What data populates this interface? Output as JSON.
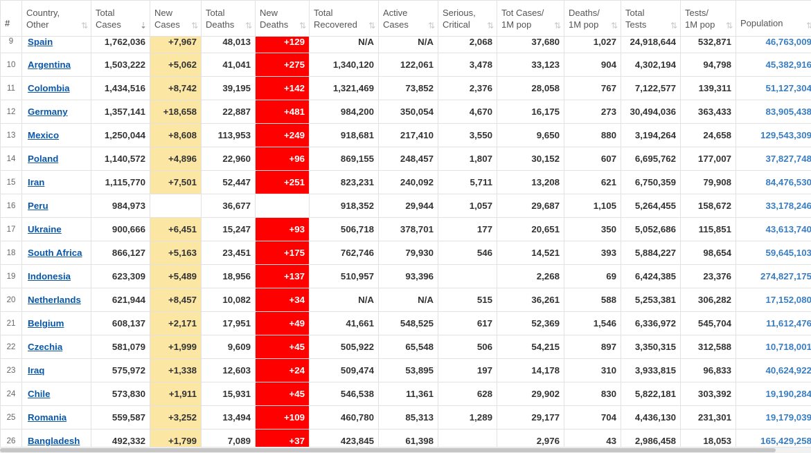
{
  "columns": [
    {
      "key": "num",
      "label1": "#",
      "label2": ""
    },
    {
      "key": "country",
      "label1": "Country,",
      "label2": "Other"
    },
    {
      "key": "total_cases",
      "label1": "Total",
      "label2": "Cases"
    },
    {
      "key": "new_cases",
      "label1": "New",
      "label2": "Cases"
    },
    {
      "key": "total_deaths",
      "label1": "Total",
      "label2": "Deaths"
    },
    {
      "key": "new_deaths",
      "label1": "New",
      "label2": "Deaths"
    },
    {
      "key": "total_recovered",
      "label1": "Total",
      "label2": "Recovered"
    },
    {
      "key": "active_cases",
      "label1": "Active",
      "label2": "Cases"
    },
    {
      "key": "serious",
      "label1": "Serious,",
      "label2": "Critical"
    },
    {
      "key": "tot_cases_1m",
      "label1": "Tot Cases/",
      "label2": "1M pop"
    },
    {
      "key": "deaths_1m",
      "label1": "Deaths/",
      "label2": "1M pop"
    },
    {
      "key": "total_tests",
      "label1": "Total",
      "label2": "Tests"
    },
    {
      "key": "tests_1m",
      "label1": "Tests/",
      "label2": "1M pop"
    },
    {
      "key": "population",
      "label1": "Population",
      "label2": ""
    }
  ],
  "sort_glyph": "⇅",
  "sort_active_glyph": "⇣",
  "rows": [
    {
      "num": "9",
      "country": "Spain",
      "total_cases": "1,762,036",
      "new_cases": "+7,967",
      "total_deaths": "48,013",
      "new_deaths": "+129",
      "total_recovered": "N/A",
      "active_cases": "N/A",
      "serious": "2,068",
      "tot_cases_1m": "37,680",
      "deaths_1m": "1,027",
      "total_tests": "24,918,644",
      "tests_1m": "532,871",
      "population": "46,763,009"
    },
    {
      "num": "10",
      "country": "Argentina",
      "total_cases": "1,503,222",
      "new_cases": "+5,062",
      "total_deaths": "41,041",
      "new_deaths": "+275",
      "total_recovered": "1,340,120",
      "active_cases": "122,061",
      "serious": "3,478",
      "tot_cases_1m": "33,123",
      "deaths_1m": "904",
      "total_tests": "4,302,194",
      "tests_1m": "94,798",
      "population": "45,382,916"
    },
    {
      "num": "11",
      "country": "Colombia",
      "total_cases": "1,434,516",
      "new_cases": "+8,742",
      "total_deaths": "39,195",
      "new_deaths": "+142",
      "total_recovered": "1,321,469",
      "active_cases": "73,852",
      "serious": "2,376",
      "tot_cases_1m": "28,058",
      "deaths_1m": "767",
      "total_tests": "7,122,577",
      "tests_1m": "139,311",
      "population": "51,127,304"
    },
    {
      "num": "12",
      "country": "Germany",
      "total_cases": "1,357,141",
      "new_cases": "+18,658",
      "total_deaths": "22,887",
      "new_deaths": "+481",
      "total_recovered": "984,200",
      "active_cases": "350,054",
      "serious": "4,670",
      "tot_cases_1m": "16,175",
      "deaths_1m": "273",
      "total_tests": "30,494,036",
      "tests_1m": "363,433",
      "population": "83,905,438"
    },
    {
      "num": "13",
      "country": "Mexico",
      "total_cases": "1,250,044",
      "new_cases": "+8,608",
      "total_deaths": "113,953",
      "new_deaths": "+249",
      "total_recovered": "918,681",
      "active_cases": "217,410",
      "serious": "3,550",
      "tot_cases_1m": "9,650",
      "deaths_1m": "880",
      "total_tests": "3,194,264",
      "tests_1m": "24,658",
      "population": "129,543,309"
    },
    {
      "num": "14",
      "country": "Poland",
      "total_cases": "1,140,572",
      "new_cases": "+4,896",
      "total_deaths": "22,960",
      "new_deaths": "+96",
      "total_recovered": "869,155",
      "active_cases": "248,457",
      "serious": "1,807",
      "tot_cases_1m": "30,152",
      "deaths_1m": "607",
      "total_tests": "6,695,762",
      "tests_1m": "177,007",
      "population": "37,827,748"
    },
    {
      "num": "15",
      "country": "Iran",
      "total_cases": "1,115,770",
      "new_cases": "+7,501",
      "total_deaths": "52,447",
      "new_deaths": "+251",
      "total_recovered": "823,231",
      "active_cases": "240,092",
      "serious": "5,711",
      "tot_cases_1m": "13,208",
      "deaths_1m": "621",
      "total_tests": "6,750,359",
      "tests_1m": "79,908",
      "population": "84,476,530"
    },
    {
      "num": "16",
      "country": "Peru",
      "total_cases": "984,973",
      "new_cases": "",
      "total_deaths": "36,677",
      "new_deaths": "",
      "total_recovered": "918,352",
      "active_cases": "29,944",
      "serious": "1,057",
      "tot_cases_1m": "29,687",
      "deaths_1m": "1,105",
      "total_tests": "5,264,455",
      "tests_1m": "158,672",
      "population": "33,178,246"
    },
    {
      "num": "17",
      "country": "Ukraine",
      "total_cases": "900,666",
      "new_cases": "+6,451",
      "total_deaths": "15,247",
      "new_deaths": "+93",
      "total_recovered": "506,718",
      "active_cases": "378,701",
      "serious": "177",
      "tot_cases_1m": "20,651",
      "deaths_1m": "350",
      "total_tests": "5,052,686",
      "tests_1m": "115,851",
      "population": "43,613,740"
    },
    {
      "num": "18",
      "country": "South Africa",
      "total_cases": "866,127",
      "new_cases": "+5,163",
      "total_deaths": "23,451",
      "new_deaths": "+175",
      "total_recovered": "762,746",
      "active_cases": "79,930",
      "serious": "546",
      "tot_cases_1m": "14,521",
      "deaths_1m": "393",
      "total_tests": "5,884,227",
      "tests_1m": "98,654",
      "population": "59,645,103"
    },
    {
      "num": "19",
      "country": "Indonesia",
      "total_cases": "623,309",
      "new_cases": "+5,489",
      "total_deaths": "18,956",
      "new_deaths": "+137",
      "total_recovered": "510,957",
      "active_cases": "93,396",
      "serious": "",
      "tot_cases_1m": "2,268",
      "deaths_1m": "69",
      "total_tests": "6,424,385",
      "tests_1m": "23,376",
      "population": "274,827,175"
    },
    {
      "num": "20",
      "country": "Netherlands",
      "total_cases": "621,944",
      "new_cases": "+8,457",
      "total_deaths": "10,082",
      "new_deaths": "+34",
      "total_recovered": "N/A",
      "active_cases": "N/A",
      "serious": "515",
      "tot_cases_1m": "36,261",
      "deaths_1m": "588",
      "total_tests": "5,253,381",
      "tests_1m": "306,282",
      "population": "17,152,080"
    },
    {
      "num": "21",
      "country": "Belgium",
      "total_cases": "608,137",
      "new_cases": "+2,171",
      "total_deaths": "17,951",
      "new_deaths": "+49",
      "total_recovered": "41,661",
      "active_cases": "548,525",
      "serious": "617",
      "tot_cases_1m": "52,369",
      "deaths_1m": "1,546",
      "total_tests": "6,336,972",
      "tests_1m": "545,704",
      "population": "11,612,476"
    },
    {
      "num": "22",
      "country": "Czechia",
      "total_cases": "581,079",
      "new_cases": "+1,999",
      "total_deaths": "9,609",
      "new_deaths": "+45",
      "total_recovered": "505,922",
      "active_cases": "65,548",
      "serious": "506",
      "tot_cases_1m": "54,215",
      "deaths_1m": "897",
      "total_tests": "3,350,315",
      "tests_1m": "312,588",
      "population": "10,718,001"
    },
    {
      "num": "23",
      "country": "Iraq",
      "total_cases": "575,972",
      "new_cases": "+1,338",
      "total_deaths": "12,603",
      "new_deaths": "+24",
      "total_recovered": "509,474",
      "active_cases": "53,895",
      "serious": "197",
      "tot_cases_1m": "14,178",
      "deaths_1m": "310",
      "total_tests": "3,933,815",
      "tests_1m": "96,833",
      "population": "40,624,922"
    },
    {
      "num": "24",
      "country": "Chile",
      "total_cases": "573,830",
      "new_cases": "+1,911",
      "total_deaths": "15,931",
      "new_deaths": "+45",
      "total_recovered": "546,538",
      "active_cases": "11,361",
      "serious": "628",
      "tot_cases_1m": "29,902",
      "deaths_1m": "830",
      "total_tests": "5,822,181",
      "tests_1m": "303,392",
      "population": "19,190,284"
    },
    {
      "num": "25",
      "country": "Romania",
      "total_cases": "559,587",
      "new_cases": "+3,252",
      "total_deaths": "13,494",
      "new_deaths": "+109",
      "total_recovered": "460,780",
      "active_cases": "85,313",
      "serious": "1,289",
      "tot_cases_1m": "29,177",
      "deaths_1m": "704",
      "total_tests": "4,436,130",
      "tests_1m": "231,301",
      "population": "19,179,039"
    },
    {
      "num": "26",
      "country": "Bangladesh",
      "total_cases": "492,332",
      "new_cases": "+1,799",
      "total_deaths": "7,089",
      "new_deaths": "+37",
      "total_recovered": "423,845",
      "active_cases": "61,398",
      "serious": "",
      "tot_cases_1m": "2,976",
      "deaths_1m": "43",
      "total_tests": "2,986,458",
      "tests_1m": "18,053",
      "population": "165,429,258"
    }
  ],
  "colors": {
    "new_cases_bg": "#fbe6a3",
    "new_deaths_bg": "#ff0000",
    "link": "#0a57a8",
    "population_link": "#3a7ec1"
  }
}
